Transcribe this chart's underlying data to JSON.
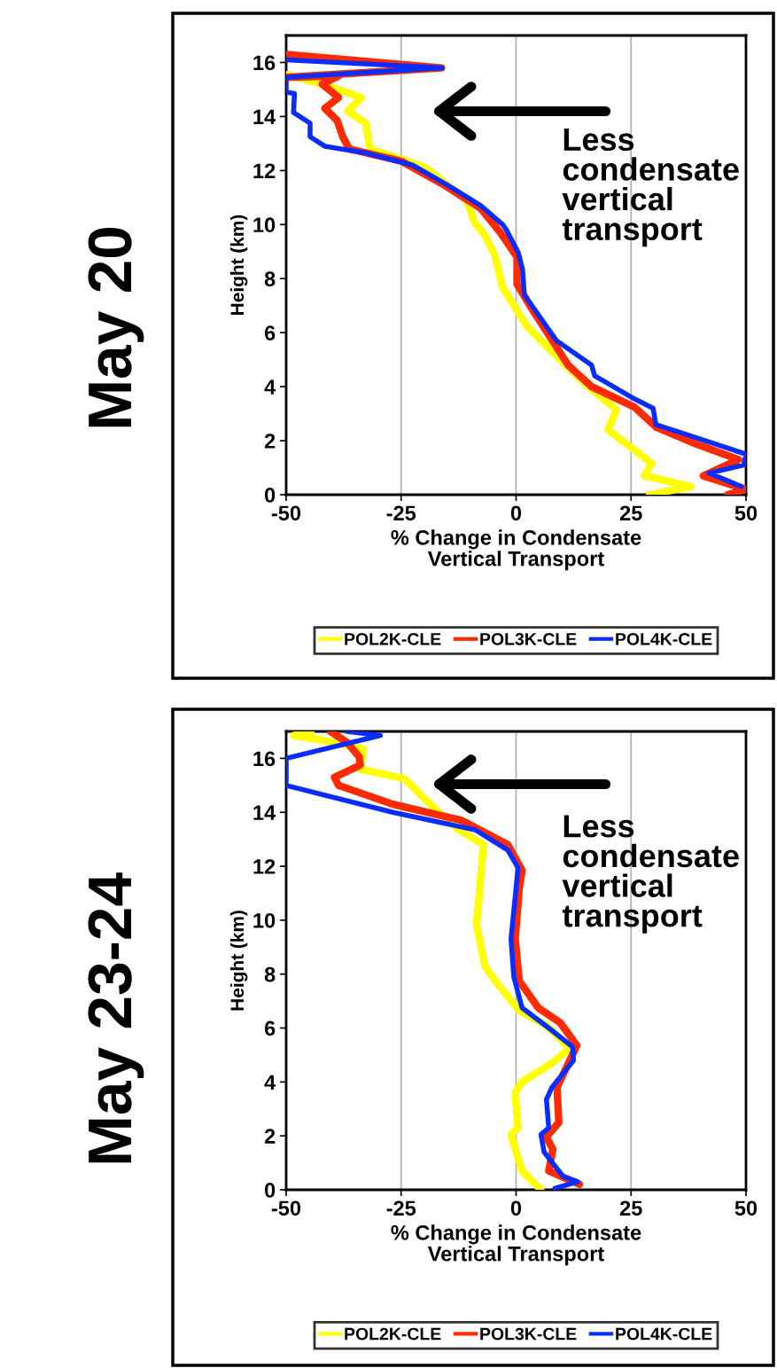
{
  "chart_data": [
    {
      "type": "line",
      "title": "May 20",
      "xlabel": "% Change in Condensate Vertical Transport",
      "ylabel": "Height (km)",
      "xlim": [
        -50,
        50
      ],
      "xticks": [
        -50,
        -25,
        0,
        25,
        50
      ],
      "ylim": [
        0,
        17
      ],
      "yticks": [
        0,
        2,
        4,
        6,
        8,
        10,
        12,
        14,
        16
      ],
      "grid": "x",
      "legend": "bottom",
      "line_style": "solid",
      "annotations": [
        "Less condensate vertical transport"
      ],
      "series": [
        {
          "name": "POL2K-CLE",
          "color": "#ffff00",
          "x": [
            29,
            38,
            27.9,
            29.5,
            25.4,
            20,
            21.8,
            15.7,
            11.3,
            2.3,
            -3,
            -4.6,
            -6.8,
            -9.1,
            -10.7,
            -19.6,
            -31.8,
            -32.7,
            -36.6,
            -33.6,
            -42.1,
            -50
          ],
          "values": [
            0,
            0.3,
            0.7,
            1.15,
            1.7,
            2.4,
            3.15,
            4.0,
            4.7,
            6.25,
            7.7,
            8.85,
            9.6,
            10.1,
            10.9,
            12.1,
            12.8,
            13.75,
            14.2,
            14.7,
            15.2,
            15.55
          ]
        },
        {
          "name": "POL3K-CLE",
          "color": "#ff2a00",
          "x": [
            46,
            50,
            40.7,
            48.4,
            38.8,
            30.5,
            25.7,
            16.4,
            11.3,
            3.0,
            0.2,
            0.2,
            -3.4,
            -7.7,
            -16,
            -25,
            -36.3,
            -37.7,
            -38.9,
            -41.6,
            -38.6,
            -42.2,
            -38.6,
            -50,
            -16.2,
            -50
          ],
          "values": [
            0,
            0.2,
            0.7,
            1.3,
            1.9,
            2.5,
            3.25,
            4.0,
            4.8,
            7.0,
            7.8,
            8.8,
            9.7,
            10.6,
            11.5,
            12.35,
            12.8,
            13.25,
            13.85,
            14.3,
            14.7,
            15.2,
            15.5,
            15.45,
            15.8,
            16.3
          ]
        },
        {
          "name": "POL4K-CLE",
          "color": "#0a2dff",
          "x": [
            49,
            42,
            49.5,
            50,
            30.4,
            29.8,
            25.7,
            17.1,
            16.4,
            8.8,
            1.8,
            1.4,
            0.5,
            -2.1,
            -2.9,
            -7.7,
            -14.8,
            -22.5,
            -32.7,
            -41.6,
            -44.8,
            -44.8,
            -48.4,
            -48.2,
            -50,
            -50,
            -16.1,
            -50
          ],
          "values": [
            0.3,
            0.8,
            1.1,
            1.5,
            2.6,
            3.2,
            3.55,
            4.4,
            4.8,
            5.7,
            7.4,
            8.35,
            8.95,
            9.8,
            10.0,
            10.7,
            11.45,
            12.2,
            12.65,
            12.9,
            13.25,
            13.75,
            14.15,
            14.85,
            14.9,
            15.45,
            15.8,
            16.1
          ]
        }
      ]
    },
    {
      "type": "line",
      "title": "May 23-24",
      "xlabel": "% Change in Condensate Vertical Transport",
      "ylabel": "Height (km)",
      "xlim": [
        -50,
        50
      ],
      "xticks": [
        -50,
        -25,
        0,
        25,
        50
      ],
      "ylim": [
        0,
        17
      ],
      "yticks": [
        0,
        2,
        4,
        6,
        8,
        10,
        12,
        14,
        16
      ],
      "grid": "x",
      "legend": "bottom",
      "line_style": "solid",
      "annotations": [
        "Less condensate vertical transport"
      ],
      "series": [
        {
          "name": "POL2K-CLE",
          "color": "#ffff00",
          "x": [
            5.4,
            1.3,
            -0.5,
            -1.1,
            0.4,
            -0.2,
            1.3,
            7.8,
            11.6,
            6.6,
            0.7,
            -4.1,
            -6.8,
            -8.6,
            -8.2,
            -7.1,
            -12.5,
            -18.4,
            -24.3,
            -33.9,
            -33.2,
            -42.9,
            -48.4,
            -44.6
          ],
          "values": [
            0,
            0.7,
            1.7,
            2.05,
            2.3,
            3.6,
            4.0,
            4.7,
            5.25,
            6.1,
            6.65,
            7.65,
            8.3,
            9.85,
            10.6,
            12.8,
            13.35,
            14.25,
            15.25,
            15.6,
            16.35,
            16.7,
            16.85,
            17.0
          ]
        },
        {
          "name": "POL3K-CLE",
          "color": "#ff2a00",
          "x": [
            13.8,
            7.1,
            8.0,
            6.6,
            9.3,
            8.9,
            13.2,
            9.6,
            4.8,
            0.7,
            -0.2,
            0.7,
            1.3,
            -1.8,
            -11.8,
            -26.8,
            -38.6,
            -39.5,
            -33.9,
            -34.1,
            -36.8,
            -40.4
          ],
          "values": [
            0.2,
            0.7,
            1.5,
            1.95,
            2.5,
            3.8,
            5.35,
            6.2,
            6.75,
            7.75,
            9.3,
            11.2,
            11.85,
            12.8,
            13.7,
            14.3,
            15.0,
            15.3,
            15.75,
            16.05,
            16.6,
            17.0
          ]
        },
        {
          "name": "POL4K-CLE",
          "color": "#0a2dff",
          "x": [
            8.4,
            13.4,
            10.2,
            6.1,
            5.4,
            7.1,
            6.6,
            7.8,
            12.5,
            12.3,
            7.1,
            1.3,
            -0.5,
            -1.1,
            0,
            0.4,
            -1.8,
            -8.9,
            -26.8,
            -50,
            -50,
            -29.5,
            -36.8
          ],
          "values": [
            0.05,
            0.3,
            0.5,
            1.4,
            2.05,
            2.3,
            3.35,
            3.8,
            4.8,
            5.3,
            6.0,
            6.75,
            7.9,
            9.3,
            11.2,
            11.95,
            12.6,
            13.35,
            14.0,
            15.0,
            16.0,
            16.85,
            17.0
          ]
        }
      ]
    }
  ]
}
